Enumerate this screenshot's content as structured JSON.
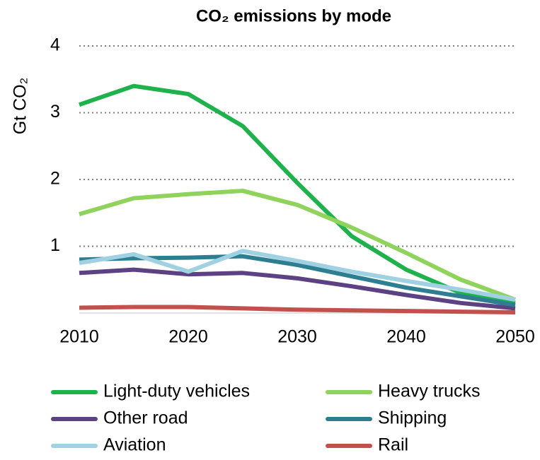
{
  "chart_data": {
    "type": "line",
    "title": "CO₂ emissions by mode",
    "y_label": "Gt CO₂",
    "x": [
      2010,
      2015,
      2020,
      2025,
      2030,
      2035,
      2040,
      2045,
      2050
    ],
    "xlim": [
      2010,
      2050
    ],
    "xticks": [
      2010,
      2020,
      2030,
      2040,
      2050
    ],
    "ylim": [
      0,
      4
    ],
    "yticks": [
      1,
      2,
      3,
      4
    ],
    "grid": true,
    "legend": "bottom",
    "series": [
      {
        "name": "Light-duty vehicles",
        "color": "#1fb14b",
        "values": [
          3.12,
          3.4,
          3.28,
          2.8,
          1.95,
          1.15,
          0.65,
          0.3,
          0.15
        ]
      },
      {
        "name": "Heavy trucks",
        "color": "#8fd35c",
        "values": [
          1.48,
          1.72,
          1.78,
          1.83,
          1.62,
          1.28,
          0.9,
          0.5,
          0.2
        ]
      },
      {
        "name": "Other road",
        "color": "#5c4183",
        "values": [
          0.6,
          0.65,
          0.58,
          0.6,
          0.52,
          0.4,
          0.27,
          0.15,
          0.07
        ]
      },
      {
        "name": "Shipping",
        "color": "#2c7e90",
        "values": [
          0.8,
          0.82,
          0.83,
          0.85,
          0.72,
          0.55,
          0.38,
          0.25,
          0.12
        ]
      },
      {
        "name": "Aviation",
        "color": "#a0d1e3",
        "values": [
          0.75,
          0.88,
          0.62,
          0.93,
          0.78,
          0.62,
          0.48,
          0.35,
          0.2
        ]
      },
      {
        "name": "Rail",
        "color": "#c3504d",
        "values": [
          0.08,
          0.09,
          0.09,
          0.07,
          0.05,
          0.04,
          0.03,
          0.02,
          0.01
        ]
      }
    ]
  }
}
